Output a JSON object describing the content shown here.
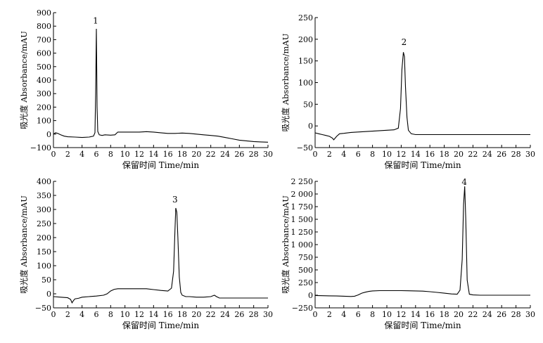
{
  "chart_data": [
    {
      "type": "line",
      "xlabel": "保留时间 Time/min",
      "ylabel": "吸光度 Absorbance/mAU",
      "xlim": [
        0,
        30
      ],
      "ylim": [
        -100,
        900
      ],
      "x_ticks": [
        "0",
        "2",
        "4",
        "6",
        "8",
        "10",
        "12",
        "14",
        "16",
        "18",
        "20",
        "22",
        "24",
        "26",
        "28",
        "30"
      ],
      "y_ticks": [
        "−100",
        "0",
        "100",
        "200",
        "300",
        "400",
        "500",
        "600",
        "700",
        "800",
        "900"
      ],
      "peak_label": "1",
      "peak_label_pos": [
        5.9,
        820
      ],
      "series": [
        {
          "x": [
            0,
            0.3,
            0.6,
            1.0,
            1.5,
            2.0,
            3.0,
            4.0,
            5.0,
            5.6,
            5.8,
            5.9,
            6.0,
            6.05,
            6.1,
            6.2,
            6.4,
            6.8,
            7.2,
            8.0,
            8.6,
            9.0,
            10,
            11,
            12,
            13,
            14,
            15,
            16,
            17,
            18,
            19,
            20,
            21,
            22,
            23,
            24,
            25,
            26,
            27,
            28,
            29,
            30
          ],
          "y": [
            0,
            10,
            5,
            -5,
            -15,
            -20,
            -22,
            -25,
            -22,
            -15,
            10,
            300,
            780,
            500,
            200,
            20,
            -5,
            -10,
            -5,
            -8,
            -5,
            15,
            15,
            15,
            15,
            18,
            15,
            10,
            5,
            5,
            8,
            5,
            0,
            -5,
            -10,
            -15,
            -25,
            -35,
            -45,
            -50,
            -55,
            -58,
            -60
          ]
        }
      ]
    },
    {
      "type": "line",
      "xlabel": "保留时间 Time/min",
      "ylabel": "吸光度 Absorbance/mAU",
      "xlim": [
        0,
        30
      ],
      "ylim": [
        -50,
        250
      ],
      "x_ticks": [
        "0",
        "2",
        "4",
        "6",
        "8",
        "10",
        "12",
        "14",
        "16",
        "18",
        "20",
        "22",
        "24",
        "26",
        "28",
        "30"
      ],
      "y_ticks": [
        "−50",
        "0",
        "50",
        "100",
        "150",
        "200",
        "250"
      ],
      "peak_label": "2",
      "peak_label_pos": [
        12.4,
        187
      ],
      "series": [
        {
          "x": [
            0,
            0.5,
            1.0,
            1.5,
            2.0,
            2.4,
            2.6,
            2.8,
            3.0,
            3.4,
            4.0,
            5.0,
            6.0,
            7.0,
            8.0,
            9.0,
            10,
            11,
            11.6,
            11.9,
            12.1,
            12.3,
            12.45,
            12.6,
            12.8,
            13.0,
            13.4,
            14,
            15,
            16,
            17,
            18,
            20,
            22,
            24,
            26,
            28,
            30
          ],
          "y": [
            -16,
            -18,
            -20,
            -22,
            -24,
            -28,
            -32,
            -28,
            -24,
            -18,
            -17,
            -15,
            -14,
            -13,
            -12,
            -11,
            -10,
            -9,
            -5,
            40,
            130,
            170,
            160,
            90,
            20,
            -10,
            -18,
            -20,
            -20,
            -20,
            -20,
            -20,
            -20,
            -20,
            -20,
            -20,
            -20,
            -20
          ]
        }
      ]
    },
    {
      "type": "line",
      "xlabel": "保留时间 Time/min",
      "ylabel": "吸光度 Absorbance/mAU",
      "xlim": [
        0,
        30
      ],
      "ylim": [
        -50,
        400
      ],
      "x_ticks": [
        "0",
        "2",
        "4",
        "6",
        "8",
        "10",
        "12",
        "14",
        "16",
        "18",
        "20",
        "22",
        "24",
        "26",
        "28",
        "30"
      ],
      "y_ticks": [
        "−50",
        "0",
        "50",
        "100",
        "150",
        "200",
        "250",
        "300",
        "350",
        "400"
      ],
      "peak_label": "3",
      "peak_label_pos": [
        17.0,
        325
      ],
      "series": [
        {
          "x": [
            0,
            1.0,
            2.0,
            2.4,
            2.6,
            2.8,
            3.0,
            3.5,
            4.0,
            5.0,
            6.0,
            7.0,
            7.5,
            8.0,
            8.5,
            9.0,
            10,
            11,
            12,
            13,
            14,
            15,
            16,
            16.5,
            16.8,
            17.0,
            17.1,
            17.25,
            17.4,
            17.6,
            17.8,
            18.0,
            18.5,
            19,
            20,
            21,
            22,
            22.5,
            22.8,
            23.2,
            24,
            26,
            28,
            30
          ],
          "y": [
            -10,
            -12,
            -14,
            -20,
            -32,
            -24,
            -18,
            -16,
            -12,
            -10,
            -8,
            -5,
            0,
            10,
            16,
            18,
            18,
            18,
            18,
            18,
            15,
            12,
            10,
            20,
            80,
            230,
            305,
            290,
            200,
            60,
            5,
            -5,
            -10,
            -10,
            -12,
            -12,
            -10,
            -5,
            -10,
            -15,
            -15,
            -15,
            -15,
            -15
          ]
        }
      ]
    },
    {
      "type": "line",
      "xlabel": "保留时间 Time/min",
      "ylabel": "吸光度 Absorbance/mAU",
      "xlim": [
        0,
        30
      ],
      "ylim": [
        -250,
        2250
      ],
      "x_ticks": [
        "0",
        "2",
        "4",
        "6",
        "8",
        "10",
        "12",
        "14",
        "16",
        "18",
        "20",
        "22",
        "24",
        "26",
        "28",
        "30"
      ],
      "y_ticks": [
        "−250",
        "0",
        "250",
        "500",
        "750",
        "1 000",
        "1 250",
        "1 500",
        "1 750",
        "2 000",
        "2 250"
      ],
      "peak_label": "4",
      "peak_label_pos": [
        20.8,
        2180
      ],
      "series": [
        {
          "x": [
            0,
            1,
            2,
            3,
            4,
            5,
            5.5,
            6.0,
            6.5,
            7.0,
            7.5,
            8.0,
            9.0,
            10,
            11,
            12,
            13,
            14,
            15,
            16,
            17,
            18,
            19,
            19.8,
            20.2,
            20.5,
            20.7,
            20.85,
            21.0,
            21.2,
            21.5,
            22,
            23,
            24,
            25,
            26,
            28,
            30
          ],
          "y": [
            -5,
            -10,
            -12,
            -15,
            -20,
            -25,
            -20,
            5,
            40,
            60,
            75,
            85,
            90,
            90,
            90,
            90,
            88,
            85,
            80,
            70,
            55,
            40,
            25,
            20,
            100,
            700,
            1800,
            2150,
            1500,
            300,
            20,
            5,
            0,
            0,
            0,
            0,
            0,
            0
          ]
        }
      ]
    }
  ]
}
